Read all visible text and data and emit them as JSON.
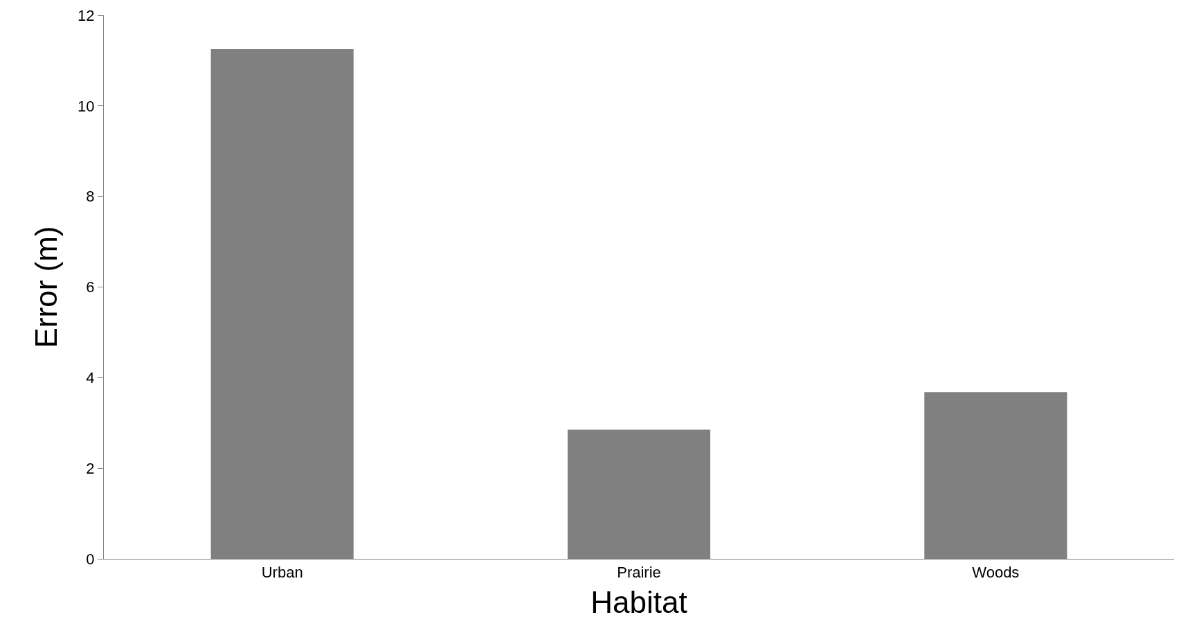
{
  "chart_data": {
    "type": "bar",
    "xlabel": "Habitat",
    "ylabel": "Error (m)",
    "categories": [
      "Urban",
      "Prairie",
      "Woods"
    ],
    "values": [
      11.25,
      2.85,
      3.68
    ],
    "color": "#808080",
    "ylim": [
      0,
      12
    ],
    "yticks": [
      0,
      2,
      4,
      6,
      8,
      10,
      12
    ]
  }
}
